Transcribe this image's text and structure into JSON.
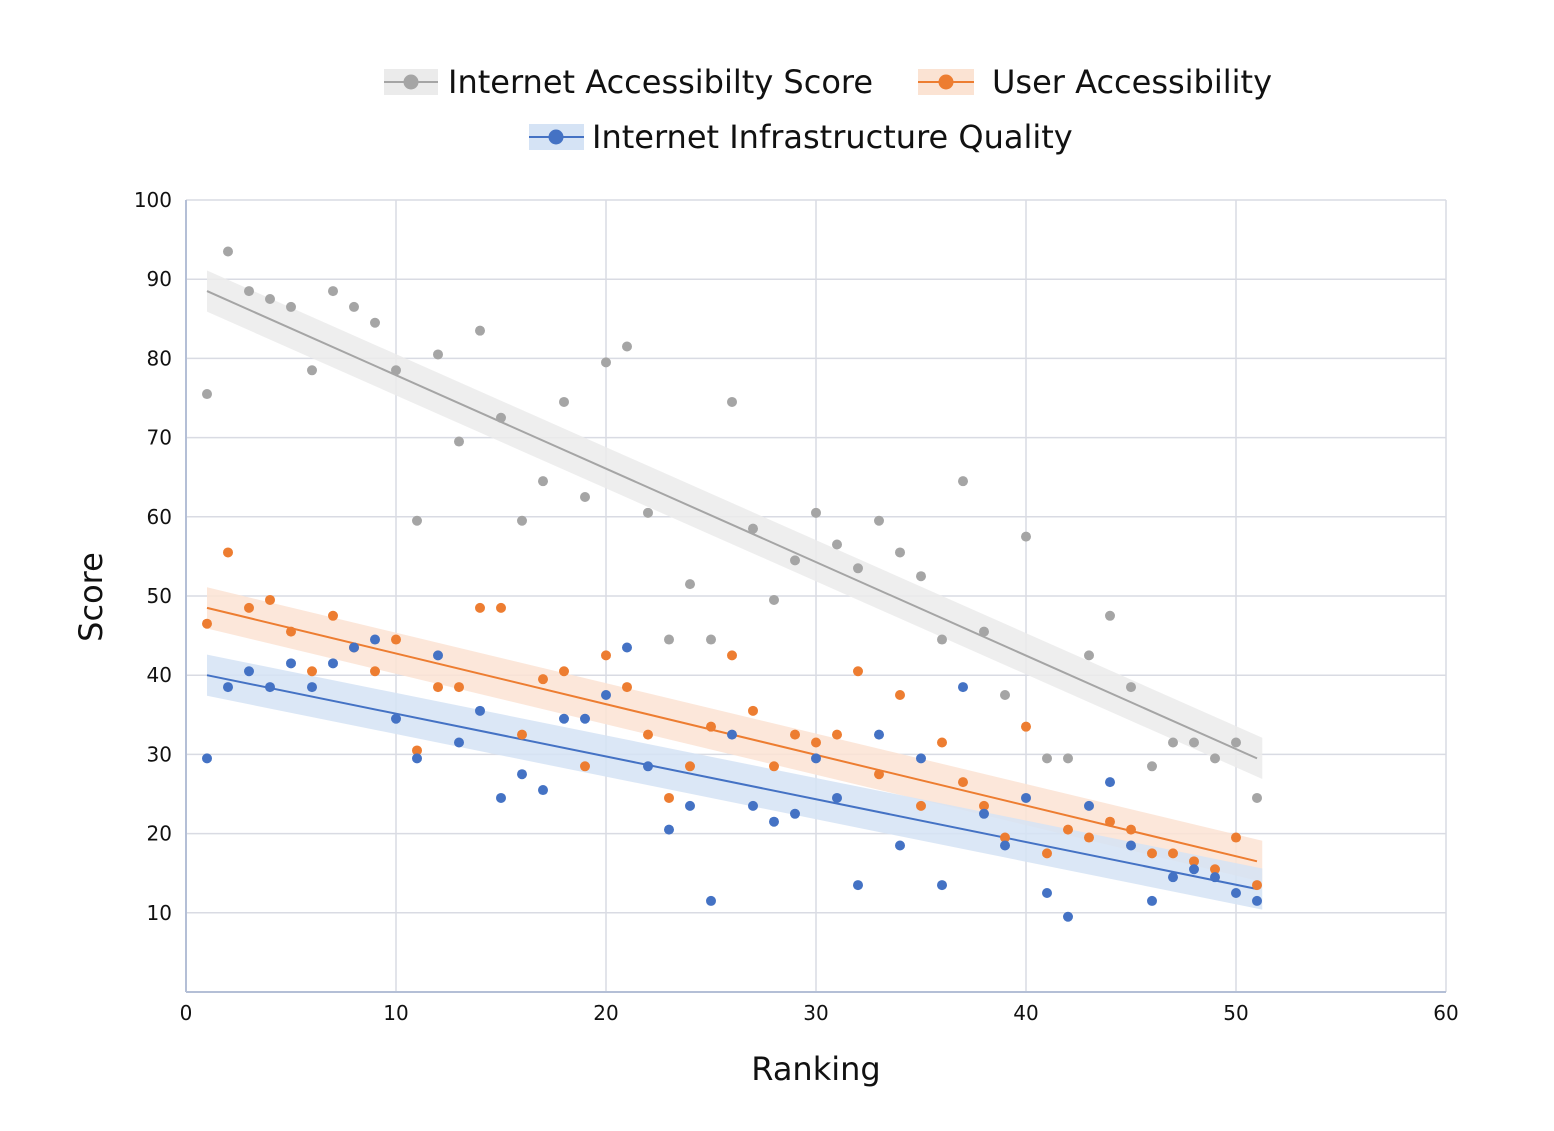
{
  "chart_data": {
    "type": "scatter",
    "xlabel": "Ranking",
    "ylabel": "Score",
    "xlim": [
      0,
      60
    ],
    "ylim": [
      0,
      100
    ],
    "xticks": [
      0,
      10,
      20,
      30,
      40,
      50,
      60
    ],
    "yticks": [
      10,
      20,
      30,
      40,
      50,
      60,
      70,
      80,
      90,
      100
    ],
    "grid": true,
    "legend_position": "top",
    "x": [
      1,
      2,
      3,
      4,
      5,
      6,
      7,
      8,
      9,
      10,
      11,
      12,
      13,
      14,
      15,
      16,
      17,
      18,
      19,
      20,
      21,
      22,
      23,
      24,
      25,
      26,
      27,
      28,
      29,
      30,
      31,
      32,
      33,
      34,
      35,
      36,
      37,
      38,
      39,
      40,
      41,
      42,
      43,
      44,
      45,
      46,
      47,
      48,
      49,
      50,
      51
    ],
    "series": [
      {
        "name": "Internet Accessibilty Score",
        "color": "#a5a5a5",
        "band_color": "#ebebeb",
        "trend": [
          88.5,
          29.5
        ],
        "values": [
          75.5,
          93.5,
          88.5,
          87.5,
          86.5,
          78.5,
          88.5,
          86.5,
          84.5,
          78.5,
          59.5,
          80.5,
          69.5,
          83.5,
          72.5,
          59.5,
          64.5,
          74.5,
          62.5,
          79.5,
          81.5,
          60.5,
          44.5,
          51.5,
          44.5,
          74.5,
          58.5,
          49.5,
          54.5,
          60.5,
          56.5,
          53.5,
          59.5,
          55.5,
          52.5,
          44.5,
          64.5,
          45.5,
          37.5,
          57.5,
          29.5,
          29.5,
          42.5,
          47.5,
          38.5,
          28.5,
          31.5,
          31.5,
          29.5,
          31.5,
          24.5
        ]
      },
      {
        "name": "User Accessibility",
        "color": "#ed7d31",
        "band_color": "#fbe3d3",
        "trend": [
          48.5,
          16.5
        ],
        "values": [
          46.5,
          55.5,
          48.5,
          49.5,
          45.5,
          40.5,
          47.5,
          43.5,
          40.5,
          44.5,
          30.5,
          38.5,
          38.5,
          48.5,
          48.5,
          32.5,
          39.5,
          40.5,
          28.5,
          42.5,
          38.5,
          32.5,
          24.5,
          28.5,
          33.5,
          42.5,
          35.5,
          28.5,
          32.5,
          31.5,
          32.5,
          40.5,
          27.5,
          37.5,
          23.5,
          31.5,
          26.5,
          23.5,
          19.5,
          33.5,
          17.5,
          20.5,
          19.5,
          21.5,
          20.5,
          17.5,
          17.5,
          16.5,
          15.5,
          19.5,
          13.5
        ]
      },
      {
        "name": "Internet Infrastructure Quality",
        "color": "#4472c4",
        "band_color": "#d5e3f5",
        "trend": [
          40.0,
          13.0
        ],
        "values": [
          29.5,
          38.5,
          40.5,
          38.5,
          41.5,
          38.5,
          41.5,
          43.5,
          44.5,
          34.5,
          29.5,
          42.5,
          31.5,
          35.5,
          24.5,
          27.5,
          25.5,
          34.5,
          34.5,
          37.5,
          43.5,
          28.5,
          20.5,
          23.5,
          11.5,
          32.5,
          23.5,
          21.5,
          22.5,
          29.5,
          24.5,
          13.5,
          32.5,
          18.5,
          29.5,
          13.5,
          38.5,
          22.5,
          18.5,
          24.5,
          12.5,
          9.5,
          23.5,
          26.5,
          18.5,
          11.5,
          14.5,
          15.5,
          14.5,
          12.5,
          11.5
        ]
      }
    ]
  }
}
